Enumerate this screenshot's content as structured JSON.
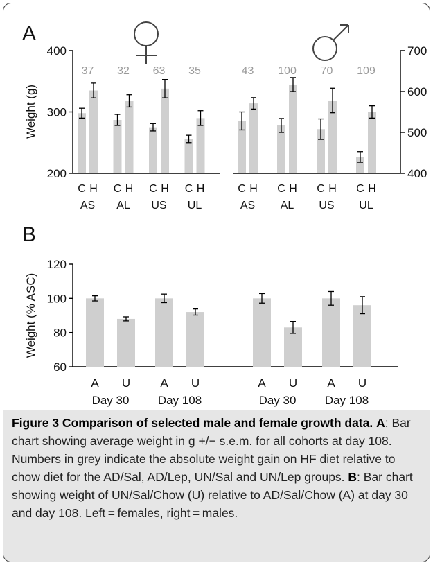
{
  "chart_data": [
    {
      "panel": "A",
      "type": "bar",
      "ylabel": "Weight (g)",
      "left": {
        "symbol": "♀",
        "ylim": [
          200,
          400
        ],
        "yticks": [
          "200",
          "300",
          "400"
        ],
        "groups": [
          "AS",
          "AL",
          "US",
          "UL"
        ],
        "bar_labels": [
          "C",
          "H"
        ],
        "gain_labels": [
          "37",
          "32",
          "63",
          "35"
        ],
        "values": [
          {
            "C": 298,
            "H": 335
          },
          {
            "C": 287,
            "H": 318
          },
          {
            "C": 275,
            "H": 338
          },
          {
            "C": 256,
            "H": 290
          }
        ],
        "errors": [
          {
            "C": 8,
            "H": 12
          },
          {
            "C": 9,
            "H": 10
          },
          {
            "C": 6,
            "H": 15
          },
          {
            "C": 6,
            "H": 12
          }
        ]
      },
      "right": {
        "symbol": "♂",
        "ylim": [
          400,
          700
        ],
        "yticks": [
          "400",
          "500",
          "600",
          "700"
        ],
        "groups": [
          "AS",
          "AL",
          "US",
          "UL"
        ],
        "bar_labels": [
          "C",
          "H"
        ],
        "gain_labels": [
          "43",
          "100",
          "70",
          "109"
        ],
        "values": [
          {
            "C": 528,
            "H": 571
          },
          {
            "C": 517,
            "H": 617
          },
          {
            "C": 508,
            "H": 578
          },
          {
            "C": 440,
            "H": 550
          }
        ],
        "errors": [
          {
            "C": 22,
            "H": 14
          },
          {
            "C": 17,
            "H": 17
          },
          {
            "C": 25,
            "H": 30
          },
          {
            "C": 13,
            "H": 15
          }
        ]
      }
    },
    {
      "panel": "B",
      "type": "bar",
      "ylabel": "Weight (% ASC)",
      "ylim": [
        60,
        120
      ],
      "yticks": [
        "60",
        "80",
        "100",
        "120"
      ],
      "bar_labels": [
        "A",
        "U"
      ],
      "groups": [
        "Day 30",
        "Day 108",
        "Day 30",
        "Day 108"
      ],
      "values": [
        {
          "A": 100,
          "U": 88
        },
        {
          "A": 100,
          "U": 92
        },
        {
          "A": 100,
          "U": 83
        },
        {
          "A": 100,
          "U": 96
        }
      ],
      "errors": [
        {
          "A": 1.5,
          "U": 1.2
        },
        {
          "A": 2.5,
          "U": 1.8
        },
        {
          "A": 2.8,
          "U": 3.5
        },
        {
          "A": 4,
          "U": 5
        }
      ]
    }
  ],
  "caption": {
    "title": "Figure 3 Comparison of selected male and female growth data.",
    "a_key": "A",
    "a_text": ": Bar chart showing average weight in g +/− s.e.m. for all cohorts at day 108. Numbers in grey indicate the absolute weight gain on HF diet relative to chow diet for the AD/Sal, AD/Lep, UN/Sal and UN/Lep groups. ",
    "b_key": "B",
    "b_text": ": Bar chart showing weight of UN/Sal/Chow (U) relative to AD/Sal/Chow (A) at day 30 and day 108. Left = females, right = males."
  },
  "colors": {
    "bar": "#cfcfcf",
    "gain_label": "#9a9a9a",
    "axis": "#000000",
    "caption_band": "#e6e6e6"
  }
}
